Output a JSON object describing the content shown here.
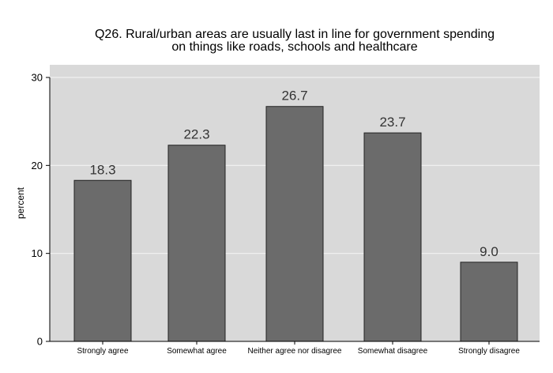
{
  "chart_data": {
    "type": "bar",
    "title": "Q26. Rural/urban areas are usually last in line for government spending\non things like roads, schools and healthcare",
    "title_lines": [
      "Q26. Rural/urban areas are usually last in line for government spending",
      "on things like roads, schools and healthcare"
    ],
    "categories": [
      "Strongly agree",
      "Somewhat agree",
      "Neither agree nor disagree",
      "Somewhat disagree",
      "Strongly disagree"
    ],
    "values": [
      18.3,
      22.3,
      26.7,
      23.7,
      9.0
    ],
    "data_labels": [
      "18.3",
      "22.3",
      "26.7",
      "23.7",
      "9.0"
    ],
    "xlabel": "",
    "ylabel": "percent",
    "ylim": [
      0,
      30
    ],
    "yticks": [
      0,
      10,
      20,
      30
    ],
    "grid": true,
    "legend": "none",
    "colors": {
      "bar_fill": "#6b6b6b",
      "bar_stroke": "#222222",
      "plot_bg": "#d9d9d9",
      "grid": "#f2f2f2",
      "page_bg": "#ffffff",
      "data_label": "#333333"
    }
  }
}
